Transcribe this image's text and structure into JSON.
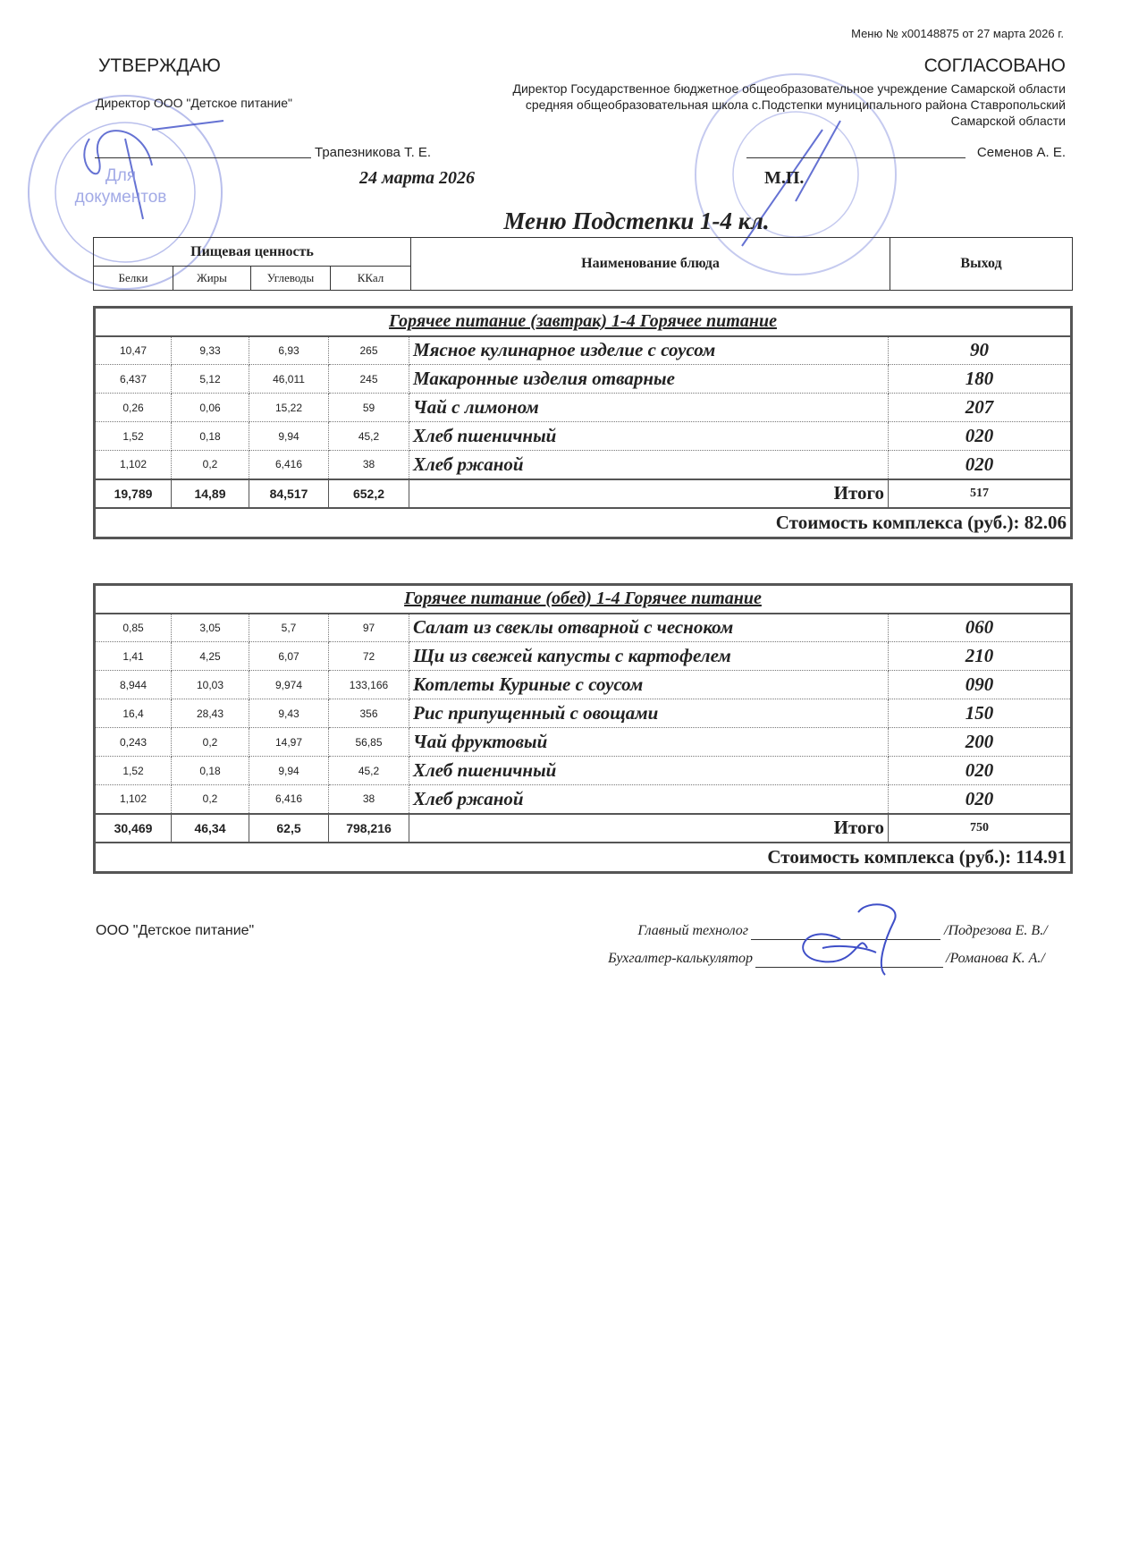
{
  "header": {
    "menu_number": "Меню № x00148875 от 27 марта 2026 г.",
    "approve": "УТВЕРЖДАЮ",
    "agree": "СОГЛАСОВАНО",
    "director_left": "Директор ООО \"Детское питание\"",
    "director_right": "Директор Государственное бюджетное общеобразовательное учреждение Самарской области средняя общеобразовательная школа с.Подстепки муниципального района Ставропольский Самарской области",
    "name_left": "Трапезникова Т. Е.",
    "name_right": "Семенов А. Е.",
    "date": "24 марта 2026",
    "mp": "М.П.",
    "stamp_text": "Для документов",
    "title": "Меню Подстепки 1-4 кл."
  },
  "columns": {
    "nutrition": "Пищевая ценность",
    "proteins": "Белки",
    "fats": "Жиры",
    "carbs": "Углеводы",
    "kcal": "ККал",
    "dish": "Наименование блюда",
    "output": "Выход"
  },
  "sections": [
    {
      "caption": "Горячее питание (завтрак) 1-4 Горячее питание",
      "rows": [
        [
          "10,47",
          "9,33",
          "6,93",
          "265",
          "Мясное  кулинарное изделие с соусом",
          "90"
        ],
        [
          "6,437",
          "5,12",
          "46,011",
          "245",
          "Макаронные изделия отварные",
          "180"
        ],
        [
          "0,26",
          "0,06",
          "15,22",
          "59",
          "Чай с лимоном",
          "207"
        ],
        [
          "1,52",
          "0,18",
          "9,94",
          "45,2",
          "Хлеб пшеничный",
          "020"
        ],
        [
          "1,102",
          "0,2",
          "6,416",
          "38",
          "Хлеб ржаной",
          "020"
        ]
      ],
      "total": [
        "19,789",
        "14,89",
        "84,517",
        "652,2",
        "Итого",
        "517"
      ],
      "cost": "Стоимость комплекса (руб.): 82.06"
    },
    {
      "caption": "Горячее питание (обед) 1-4 Горячее питание",
      "rows": [
        [
          "0,85",
          "3,05",
          "5,7",
          "97",
          "Салат из свеклы отварной с чесноком",
          "060"
        ],
        [
          "1,41",
          "4,25",
          "6,07",
          "72",
          "Щи из свежей капусты с картофелем",
          "210"
        ],
        [
          "8,944",
          "10,03",
          "9,974",
          "133,166",
          "Котлеты Куриные с соусом",
          "090"
        ],
        [
          "16,4",
          "28,43",
          "9,43",
          "356",
          "Рис припущенный с овощами",
          "150"
        ],
        [
          "0,243",
          "0,2",
          "14,97",
          "56,85",
          "Чай фруктовый",
          "200"
        ],
        [
          "1,52",
          "0,18",
          "9,94",
          "45,2",
          "Хлеб пшеничный",
          "020"
        ],
        [
          "1,102",
          "0,2",
          "6,416",
          "38",
          "Хлеб ржаной",
          "020"
        ]
      ],
      "total": [
        "30,469",
        "46,34",
        "62,5",
        "798,216",
        "Итого",
        "750"
      ],
      "cost": "Стоимость комплекса (руб.): 114.91"
    }
  ],
  "footer": {
    "org": "ООО \"Детское питание\"",
    "technologist_role": "Главный технолог",
    "technologist_name": "/Подрезова Е. В./",
    "accountant_role": "Бухгалтер-калькулятор",
    "accountant_name": "/Романова К. А./"
  },
  "colors": {
    "stamp": "#6a78d8",
    "ink": "#222222",
    "signature": "#3f4fc8"
  }
}
